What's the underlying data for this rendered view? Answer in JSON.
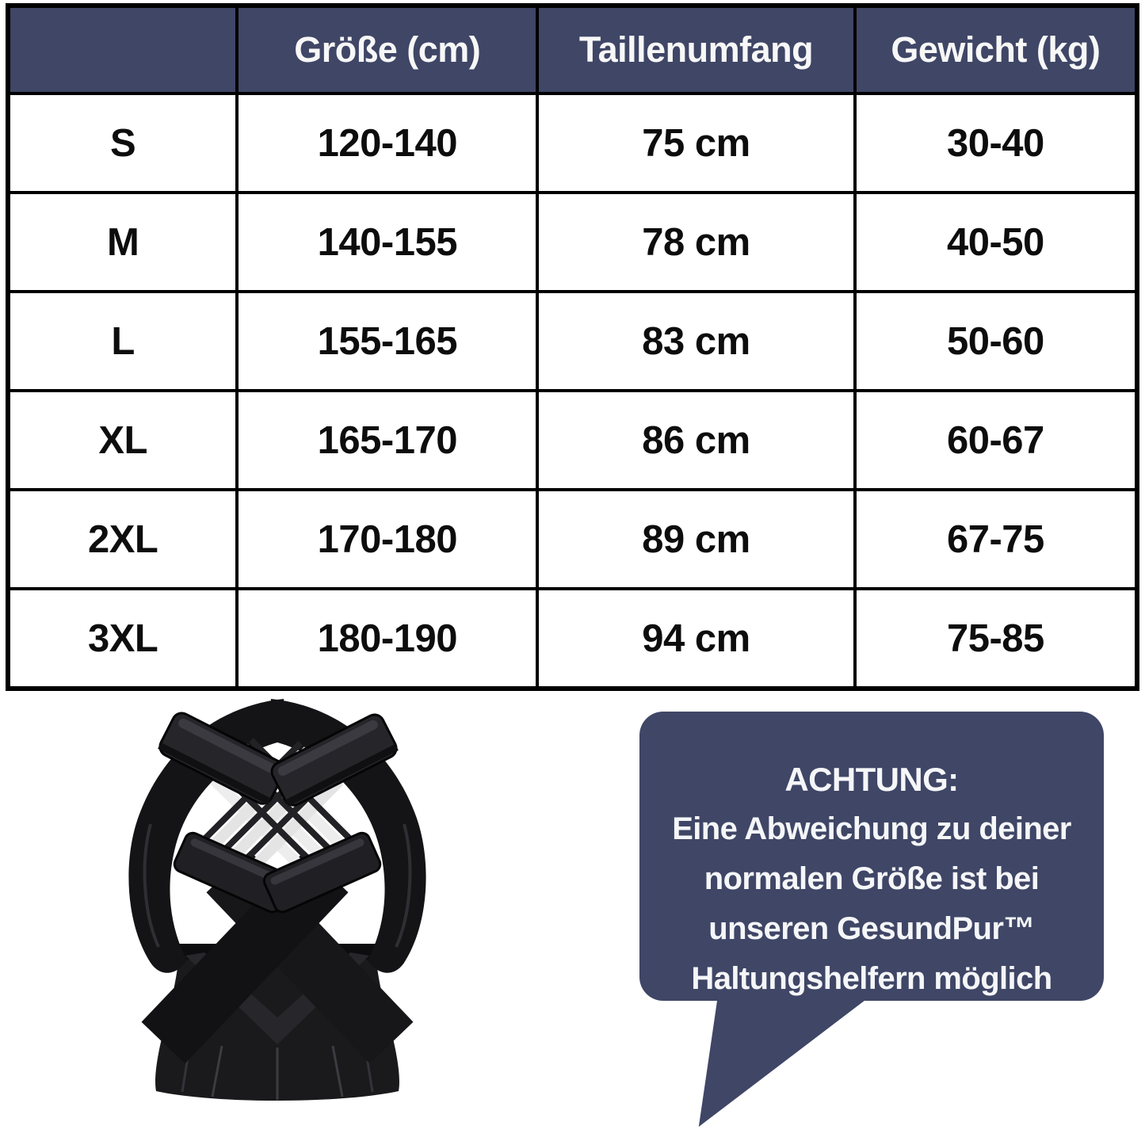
{
  "colors": {
    "navy": "#3f4666",
    "table_border": "#000000",
    "header_text": "#f7f7f7",
    "body_text": "#0d0d0d",
    "product_black": "#1a1a1d",
    "strap_white": "#ededed"
  },
  "table": {
    "headers": [
      "",
      "Größe (cm)",
      "Taillenumfang",
      "Gewicht (kg)"
    ],
    "rows": [
      [
        "S",
        "120-140",
        "75 cm",
        "30-40"
      ],
      [
        "M",
        "140-155",
        "78 cm",
        "40-50"
      ],
      [
        "L",
        "155-165",
        "83 cm",
        "50-60"
      ],
      [
        "XL",
        "165-170",
        "86 cm",
        "60-67"
      ],
      [
        "2XL",
        "170-180",
        "89 cm",
        "67-75"
      ],
      [
        "3XL",
        "180-190",
        "94 cm",
        "75-85"
      ]
    ]
  },
  "callout": {
    "title": "ACHTUNG:",
    "lines": [
      "Eine Abweichung zu deiner",
      "normalen Größe ist bei",
      "unseren GesundPur™",
      "Haltungshelfern möglich"
    ]
  },
  "product_image": {
    "icon": "posture-corrector-back-brace"
  }
}
